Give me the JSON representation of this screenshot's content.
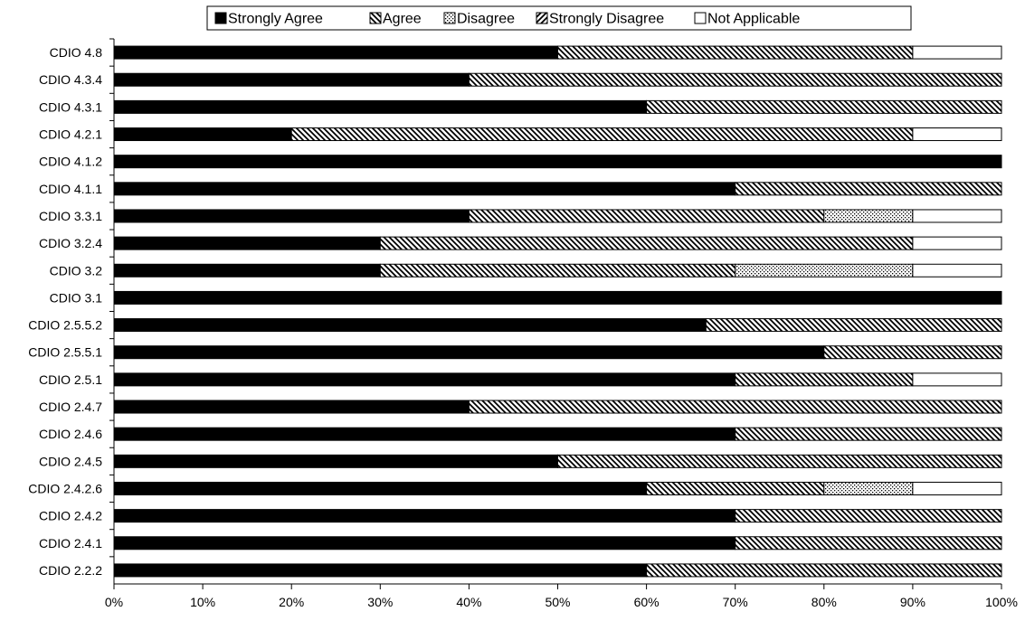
{
  "chart_data": {
    "type": "bar",
    "orientation": "horizontal",
    "stacked": "percent",
    "categories": [
      "CDIO 4.8",
      "CDIO 4.3.4",
      "CDIO 4.3.1",
      "CDIO 4.2.1",
      "CDIO 4.1.2",
      "CDIO 4.1.1",
      "CDIO 3.3.1",
      "CDIO 3.2.4",
      "CDIO 3.2",
      "CDIO 3.1",
      "CDIO 2.5.5.2",
      "CDIO 2.5.5.1",
      "CDIO 2.5.1",
      "CDIO 2.4.7",
      "CDIO 2.4.6",
      "CDIO 2.4.5",
      "CDIO 2.4.2.6",
      "CDIO 2.4.2",
      "CDIO 2.4.1",
      "CDIO 2.2.2"
    ],
    "series": [
      {
        "name": "Strongly Agree",
        "pattern": "solid",
        "values": [
          50,
          40,
          60,
          20,
          100,
          70,
          40,
          30,
          30,
          100,
          66.7,
          80,
          70,
          40,
          70,
          50,
          60,
          70,
          70,
          60
        ]
      },
      {
        "name": "Agree",
        "pattern": "back-diagonal",
        "values": [
          40,
          60,
          40,
          70,
          0,
          30,
          40,
          60,
          40,
          0,
          33.3,
          20,
          20,
          60,
          30,
          50,
          20,
          30,
          30,
          40
        ]
      },
      {
        "name": "Disagree",
        "pattern": "dots",
        "values": [
          0,
          0,
          0,
          0,
          0,
          0,
          10,
          0,
          20,
          0,
          0,
          0,
          0,
          0,
          0,
          0,
          10,
          0,
          0,
          0
        ]
      },
      {
        "name": "Strongly Disagree",
        "pattern": "forward-diagonal",
        "values": [
          0,
          0,
          0,
          0,
          0,
          0,
          0,
          0,
          0,
          0,
          0,
          0,
          0,
          0,
          0,
          0,
          0,
          0,
          0,
          0
        ]
      },
      {
        "name": "Not Applicable",
        "pattern": "empty",
        "values": [
          10,
          0,
          0,
          10,
          0,
          0,
          10,
          10,
          10,
          0,
          0,
          0,
          10,
          0,
          0,
          0,
          10,
          0,
          0,
          0
        ]
      }
    ],
    "xticks": [
      "0%",
      "10%",
      "20%",
      "30%",
      "40%",
      "50%",
      "60%",
      "70%",
      "80%",
      "90%",
      "100%"
    ],
    "xlim": [
      0,
      100
    ],
    "title": "",
    "xlabel": "",
    "ylabel": "",
    "grid": false,
    "legend_position": "top"
  }
}
